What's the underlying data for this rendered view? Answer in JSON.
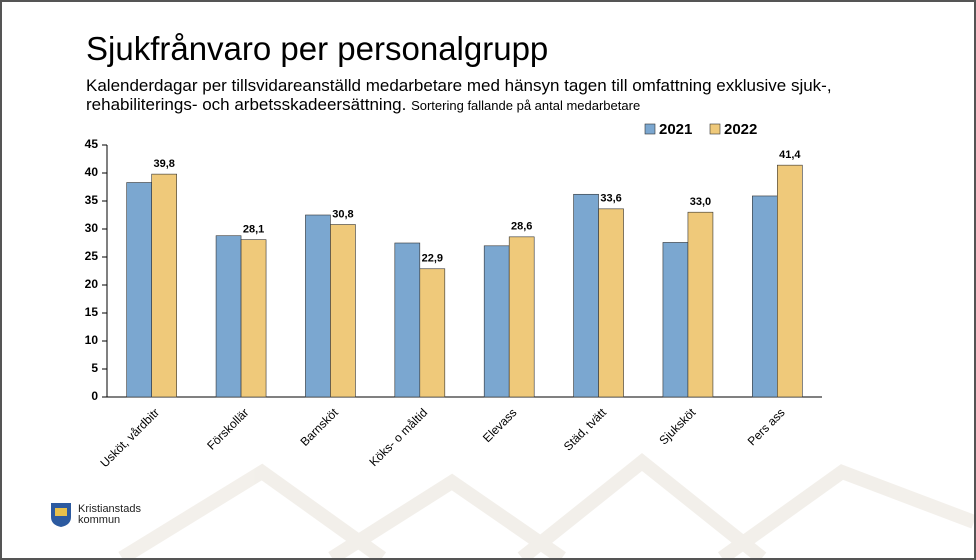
{
  "title": "Sjukfrånvaro per personalgrupp",
  "subtitle": "Kalenderdagar per tillsvidareanställd medarbetare med hänsyn tagen till omfattning exklusive sjuk-, rehabiliterings- och arbetsskadeersättning.",
  "sort_note": "Sortering fallande på antal medarbetare",
  "logo_text": [
    "Kristianstads",
    "kommun"
  ],
  "chart_data": {
    "type": "bar",
    "categories": [
      "Usköt, vårdbitr",
      "Förskollär",
      "Barnsköt",
      "Köks- o måltid",
      "Elevass",
      "Städ, tvätt",
      "Sjuksköt",
      "Pers ass"
    ],
    "series": [
      {
        "name": "2021",
        "color": "#7ba7d0",
        "values": [
          38.3,
          28.8,
          32.5,
          27.5,
          27.0,
          36.2,
          27.6,
          35.9
        ]
      },
      {
        "name": "2022",
        "color": "#efc97a",
        "values": [
          39.8,
          28.1,
          30.8,
          22.9,
          28.6,
          33.6,
          33.0,
          41.4
        ],
        "value_labels": [
          "39,8",
          "28,1",
          "30,8",
          "22,9",
          "28,6",
          "33,6",
          "33,0",
          "41,4"
        ]
      }
    ],
    "ylim": [
      0,
      45
    ],
    "yticks": [
      0,
      5,
      10,
      15,
      20,
      25,
      30,
      35,
      40,
      45
    ],
    "grid": false,
    "legend": "top-right"
  }
}
